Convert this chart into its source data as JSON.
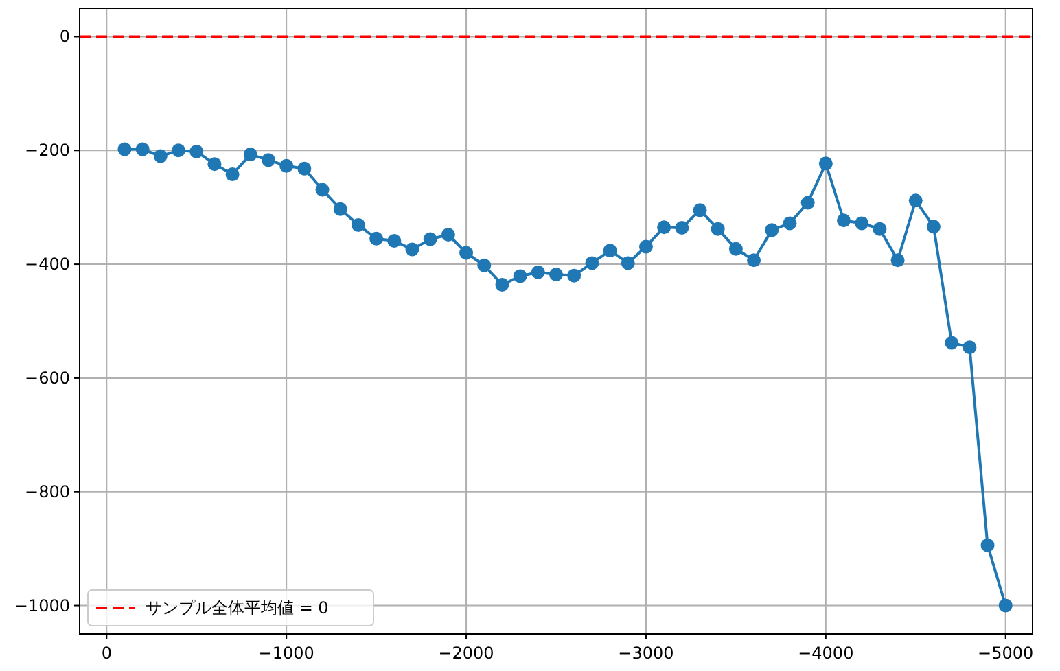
{
  "chart_data": {
    "type": "line",
    "x": [
      -100,
      -200,
      -300,
      -400,
      -500,
      -600,
      -700,
      -800,
      -900,
      -1000,
      -1100,
      -1200,
      -1300,
      -1400,
      -1500,
      -1600,
      -1700,
      -1800,
      -1900,
      -2000,
      -2100,
      -2200,
      -2300,
      -2400,
      -2500,
      -2600,
      -2700,
      -2800,
      -2900,
      -3000,
      -3100,
      -3200,
      -3300,
      -3400,
      -3500,
      -3600,
      -3700,
      -3800,
      -3900,
      -4000,
      -4100,
      -4200,
      -4300,
      -4400,
      -4500,
      -4600,
      -4700,
      -4800,
      -4900,
      -5000
    ],
    "series": [
      {
        "color": "#1f77b4",
        "values": [
          -198,
          -198,
          -210,
          -200,
          -202,
          -224,
          -242,
          -207,
          -217,
          -227,
          -232,
          -269,
          -303,
          -331,
          -355,
          -359,
          -374,
          -356,
          -348,
          -380,
          -402,
          -436,
          -421,
          -414,
          -418,
          -420,
          -398,
          -376,
          -398,
          -369,
          -335,
          -336,
          -305,
          -338,
          -373,
          -393,
          -340,
          -328,
          -292,
          -223,
          -323,
          -328,
          -338,
          -393,
          -288,
          -334,
          -538,
          -546,
          -894,
          -1000
        ]
      }
    ],
    "xlim": [
      150,
      -5150
    ],
    "ylim": [
      -1050,
      50
    ],
    "xticks": [
      0,
      {
        "value": -1000,
        "label": "−1000"
      },
      {
        "value": -2000,
        "label": "−2000"
      },
      {
        "value": -3000,
        "label": "−3000"
      },
      {
        "value": -4000,
        "label": "−4000"
      },
      {
        "value": -5000,
        "label": "−5000"
      }
    ],
    "yticks": [
      0,
      {
        "value": -200,
        "label": "−200"
      },
      {
        "value": -400,
        "label": "−400"
      },
      {
        "value": -600,
        "label": "−600"
      },
      {
        "value": -800,
        "label": "−800"
      },
      {
        "value": -1000,
        "label": "−1000"
      }
    ],
    "ref_lines": [
      {
        "axis": "y",
        "value": 0,
        "label": "サンプル全体平均値 = 0",
        "color": "#ff0000",
        "line_style": "dashed"
      }
    ],
    "grid": true,
    "legend": "bottom left",
    "marker": "circle",
    "line_style": "solid"
  }
}
